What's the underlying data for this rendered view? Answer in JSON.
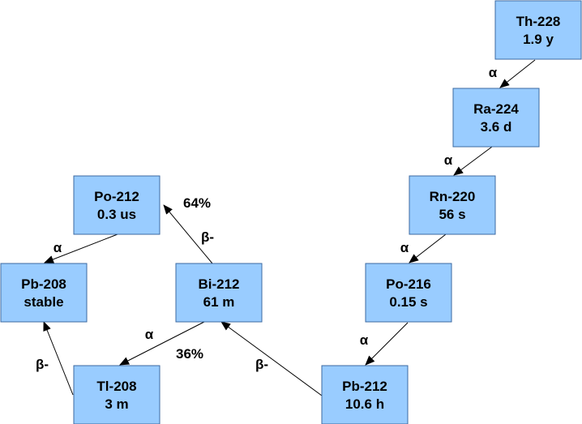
{
  "nodes": [
    {
      "id": "th228",
      "name": "Th-228",
      "halflife": "1.9 y"
    },
    {
      "id": "ra224",
      "name": "Ra-224",
      "halflife": "3.6 d"
    },
    {
      "id": "rn220",
      "name": "Rn-220",
      "halflife": "56 s"
    },
    {
      "id": "po216",
      "name": "Po-216",
      "halflife": "0.15 s"
    },
    {
      "id": "pb212",
      "name": "Pb-212",
      "halflife": "10.6 h"
    },
    {
      "id": "bi212",
      "name": "Bi-212",
      "halflife": "61 m"
    },
    {
      "id": "po212",
      "name": "Po-212",
      "halflife": "0.3 us"
    },
    {
      "id": "tl208",
      "name": "Tl-208",
      "halflife": "3 m"
    },
    {
      "id": "pb208",
      "name": "Pb-208",
      "halflife": "stable"
    }
  ],
  "edges": [
    {
      "from": "th228",
      "to": "ra224",
      "label": "α"
    },
    {
      "from": "ra224",
      "to": "rn220",
      "label": "α"
    },
    {
      "from": "rn220",
      "to": "po216",
      "label": "α"
    },
    {
      "from": "po216",
      "to": "pb212",
      "label": "α"
    },
    {
      "from": "pb212",
      "to": "bi212",
      "label": "β-"
    },
    {
      "from": "bi212",
      "to": "po212",
      "label": "β-",
      "branch": "64%"
    },
    {
      "from": "bi212",
      "to": "tl208",
      "label": "α",
      "branch": "36%"
    },
    {
      "from": "po212",
      "to": "pb208",
      "label": "α"
    },
    {
      "from": "tl208",
      "to": "pb208",
      "label": "β-"
    }
  ]
}
